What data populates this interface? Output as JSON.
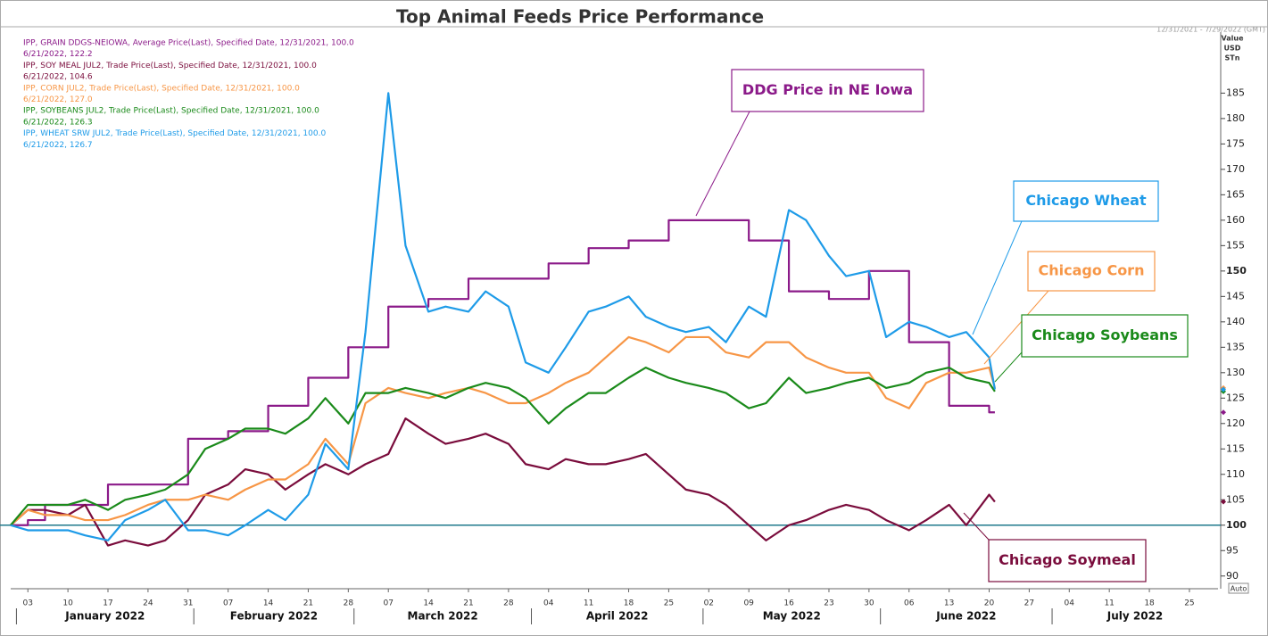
{
  "chart_data": {
    "type": "line",
    "title": "Top Animal Feeds Price Performance",
    "date_range": "12/31/2021 - 7/29/2022 (GMT)",
    "axis_header": [
      "Value",
      "USD",
      "STn"
    ],
    "auto_label": "Auto",
    "x": [
      "2021-12-31",
      "2022-01-03",
      "2022-01-06",
      "2022-01-10",
      "2022-01-13",
      "2022-01-17",
      "2022-01-20",
      "2022-01-24",
      "2022-01-27",
      "2022-01-31",
      "2022-02-03",
      "2022-02-07",
      "2022-02-10",
      "2022-02-14",
      "2022-02-17",
      "2022-02-21",
      "2022-02-24",
      "2022-02-28",
      "2022-03-03",
      "2022-03-07",
      "2022-03-10",
      "2022-03-14",
      "2022-03-17",
      "2022-03-21",
      "2022-03-24",
      "2022-03-28",
      "2022-03-31",
      "2022-04-04",
      "2022-04-07",
      "2022-04-11",
      "2022-04-14",
      "2022-04-18",
      "2022-04-21",
      "2022-04-25",
      "2022-04-28",
      "2022-05-02",
      "2022-05-05",
      "2022-05-09",
      "2022-05-12",
      "2022-05-16",
      "2022-05-19",
      "2022-05-23",
      "2022-05-26",
      "2022-05-30",
      "2022-06-02",
      "2022-06-06",
      "2022-06-09",
      "2022-06-13",
      "2022-06-16",
      "2022-06-20",
      "2022-06-21"
    ],
    "xlim": [
      "2021-12-31",
      "2022-07-30"
    ],
    "xticks": [
      {
        "value": "2022-01-03",
        "label": "03"
      },
      {
        "value": "2022-01-10",
        "label": "10"
      },
      {
        "value": "2022-01-17",
        "label": "17"
      },
      {
        "value": "2022-01-24",
        "label": "24"
      },
      {
        "value": "2022-01-31",
        "label": "31"
      },
      {
        "value": "2022-02-07",
        "label": "07"
      },
      {
        "value": "2022-02-14",
        "label": "14"
      },
      {
        "value": "2022-02-21",
        "label": "21"
      },
      {
        "value": "2022-02-28",
        "label": "28"
      },
      {
        "value": "2022-03-07",
        "label": "07"
      },
      {
        "value": "2022-03-14",
        "label": "14"
      },
      {
        "value": "2022-03-21",
        "label": "21"
      },
      {
        "value": "2022-03-28",
        "label": "28"
      },
      {
        "value": "2022-04-04",
        "label": "04"
      },
      {
        "value": "2022-04-11",
        "label": "11"
      },
      {
        "value": "2022-04-18",
        "label": "18"
      },
      {
        "value": "2022-04-25",
        "label": "25"
      },
      {
        "value": "2022-05-02",
        "label": "02"
      },
      {
        "value": "2022-05-09",
        "label": "09"
      },
      {
        "value": "2022-05-16",
        "label": "16"
      },
      {
        "value": "2022-05-23",
        "label": "23"
      },
      {
        "value": "2022-05-30",
        "label": "30"
      },
      {
        "value": "2022-06-06",
        "label": "06"
      },
      {
        "value": "2022-06-13",
        "label": "13"
      },
      {
        "value": "2022-06-20",
        "label": "20"
      },
      {
        "value": "2022-06-27",
        "label": "27"
      },
      {
        "value": "2022-07-04",
        "label": "04"
      },
      {
        "value": "2022-07-11",
        "label": "11"
      },
      {
        "value": "2022-07-18",
        "label": "18"
      },
      {
        "value": "2022-07-25",
        "label": "25"
      }
    ],
    "months": [
      {
        "start": "2022-01-01",
        "label": "January 2022"
      },
      {
        "start": "2022-02-01",
        "label": "February 2022"
      },
      {
        "start": "2022-03-01",
        "label": "March 2022"
      },
      {
        "start": "2022-04-01",
        "label": "April 2022"
      },
      {
        "start": "2022-05-01",
        "label": "May 2022"
      },
      {
        "start": "2022-06-01",
        "label": "June 2022"
      },
      {
        "start": "2022-07-01",
        "label": "July 2022"
      }
    ],
    "ylim": [
      87.5,
      197
    ],
    "yticks": [
      90,
      95,
      100,
      105,
      110,
      115,
      120,
      125,
      130,
      135,
      140,
      145,
      150,
      155,
      160,
      165,
      170,
      175,
      180,
      185
    ],
    "bold_yticks": [
      100,
      150
    ],
    "reference_line": {
      "value": 100,
      "color": "#1f7a8c"
    },
    "series": [
      {
        "name": "DDG Price in NE Iowa",
        "color": "#8b1a89",
        "drawstyle": "steps-post",
        "description": "IPP, GRAIN DDGS-NEIOWA, Average Price(Last), Specified Date, 12/31/2021, 100.0",
        "last_label": "6/21/2022, 122.2",
        "values": [
          100,
          101,
          104,
          104,
          104,
          108,
          108,
          108,
          108,
          117,
          117,
          118.5,
          118.5,
          123.5,
          123.5,
          129,
          129,
          135,
          135,
          143,
          143,
          144.5,
          144.5,
          148.5,
          148.5,
          148.5,
          148.5,
          151.5,
          151.5,
          154.5,
          154.5,
          156,
          156,
          160,
          160,
          160,
          160,
          156,
          156,
          146,
          146,
          144.5,
          144.5,
          150,
          150,
          136,
          136,
          123.5,
          123.5,
          122.2,
          122.2
        ]
      },
      {
        "name": "Chicago Soymeal",
        "color": "#7a0c3c",
        "description": "IPP, SOY MEAL JUL2, Trade Price(Last), Specified Date, 12/31/2021, 100.0",
        "last_label": "6/21/2022, 104.6",
        "values": [
          100,
          103,
          103,
          102,
          104,
          96,
          97,
          96,
          97,
          101,
          106,
          108,
          111,
          110,
          107,
          110,
          112,
          110,
          112,
          114,
          121,
          118,
          116,
          117,
          118,
          116,
          112,
          111,
          113,
          112,
          112,
          113,
          114,
          110,
          107,
          106,
          104,
          100,
          97,
          100,
          101,
          103,
          104,
          103,
          101,
          99,
          101,
          104,
          100,
          106,
          104.6
        ]
      },
      {
        "name": "Chicago Corn",
        "color": "#f79646",
        "description": "IPP, CORN JUL2, Trade Price(Last), Specified Date, 12/31/2021, 100.0",
        "last_label": "6/21/2022, 127.0",
        "values": [
          100,
          103,
          102,
          102,
          101,
          101,
          102,
          104,
          105,
          105,
          106,
          105,
          107,
          109,
          109,
          112,
          117,
          112,
          124,
          127,
          126,
          125,
          126,
          127,
          126,
          124,
          124,
          126,
          128,
          130,
          133,
          137,
          136,
          134,
          137,
          137,
          134,
          133,
          136,
          136,
          133,
          131,
          130,
          130,
          125,
          123,
          128,
          130,
          130,
          131,
          127
        ]
      },
      {
        "name": "Chicago Soybeans",
        "color": "#1a8a1a",
        "description": "IPP, SOYBEANS JUL2, Trade Price(Last), Specified Date, 12/31/2021, 100.0",
        "last_label": "6/21/2022, 126.3",
        "values": [
          100,
          104,
          104,
          104,
          105,
          103,
          105,
          106,
          107,
          110,
          115,
          117,
          119,
          119,
          118,
          121,
          125,
          120,
          126,
          126,
          127,
          126,
          125,
          127,
          128,
          127,
          125,
          120,
          123,
          126,
          126,
          129,
          131,
          129,
          128,
          127,
          126,
          123,
          124,
          129,
          126,
          127,
          128,
          129,
          127,
          128,
          130,
          131,
          129,
          128,
          126.3
        ]
      },
      {
        "name": "Chicago Wheat",
        "color": "#1e9be8",
        "description": "IPP, WHEAT SRW JUL2, Trade Price(Last), Specified Date, 12/31/2021, 100.0",
        "last_label": "6/21/2022, 126.7",
        "values": [
          100,
          99,
          99,
          99,
          98,
          97,
          101,
          103,
          105,
          99,
          99,
          98,
          100,
          103,
          101,
          106,
          116,
          111,
          138,
          185,
          155,
          142,
          143,
          142,
          146,
          143,
          132,
          130,
          135,
          142,
          143,
          145,
          141,
          139,
          138,
          139,
          136,
          143,
          141,
          162,
          160,
          153,
          149,
          150,
          137,
          140,
          139,
          137,
          138,
          133,
          126.7
        ]
      }
    ]
  }
}
